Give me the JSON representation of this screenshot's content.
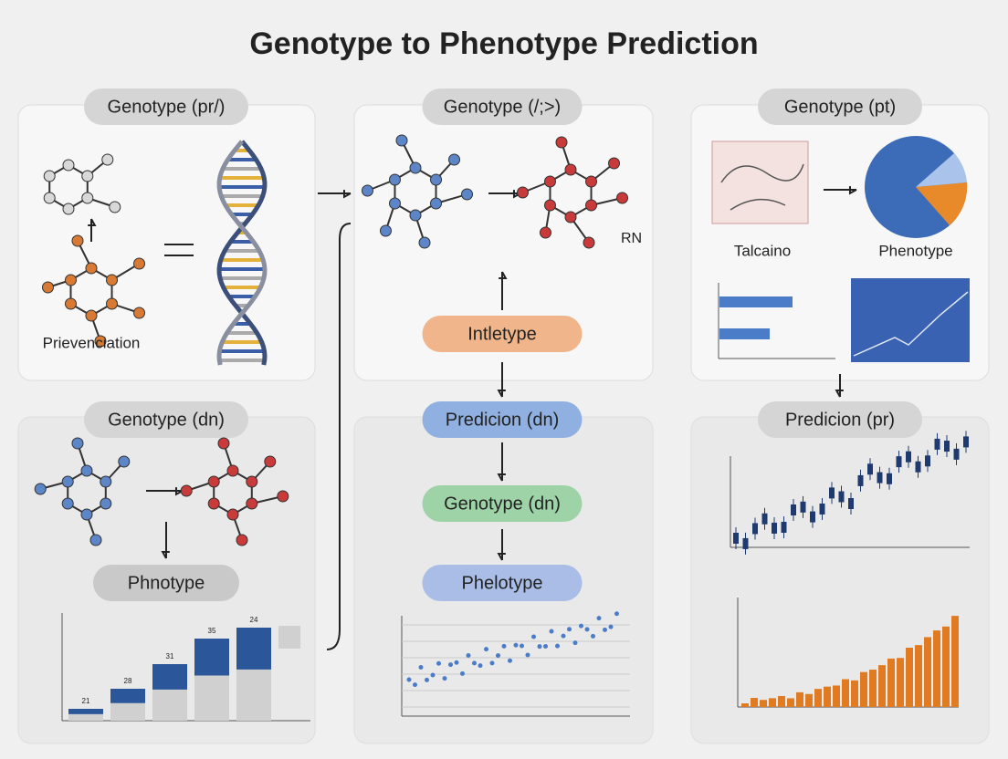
{
  "title": "Genotype to Phenotype Prediction",
  "panels": [
    {
      "pill": "Genotype (pr/)",
      "label": "Prievenciation"
    },
    {
      "pill": "Genotype (/;>)",
      "label": "RN"
    },
    {
      "pill": "Genotype (pt)",
      "labels": [
        "Talcaino",
        "Phenotype"
      ]
    },
    {
      "pill": "Genotype (dn)",
      "sub_pill": "Phnotype",
      "bar_labels": [
        21,
        28,
        31,
        35,
        24
      ]
    },
    {
      "pills": [
        "Intletype",
        "Predicion (dn)",
        "Genotype (dn)",
        "Phelotype"
      ]
    },
    {
      "pill": "Predicion (pr)"
    }
  ]
}
